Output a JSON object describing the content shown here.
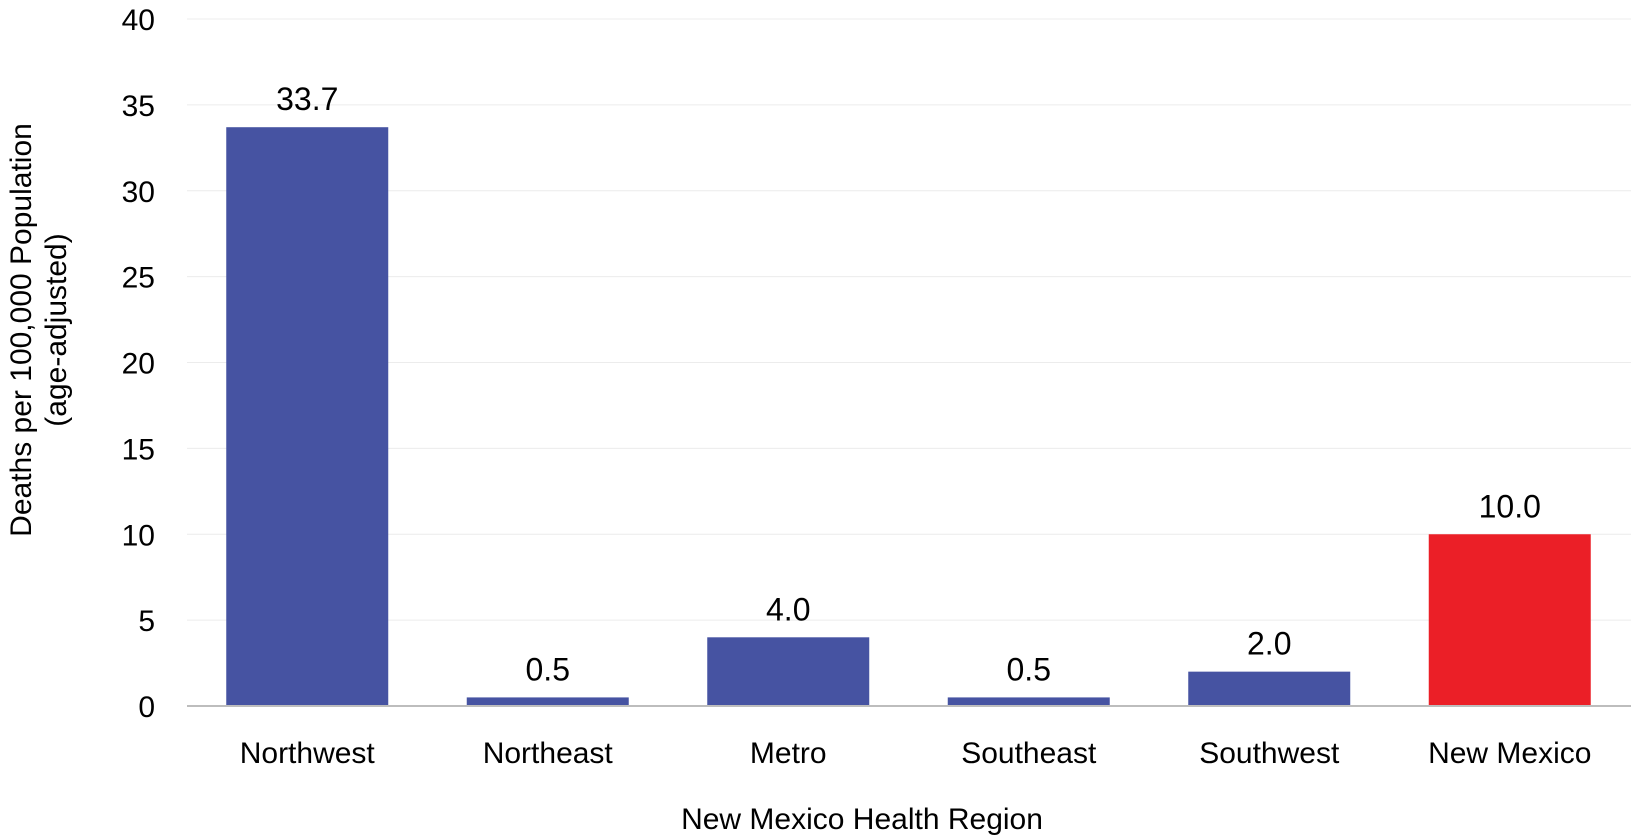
{
  "chart_data": {
    "type": "bar",
    "categories": [
      "Northwest",
      "Northeast",
      "Metro",
      "Southeast",
      "Southwest",
      "New Mexico"
    ],
    "values": [
      33.7,
      0.5,
      4.0,
      0.5,
      2.0,
      10.0
    ],
    "data_labels": [
      "33.7",
      "0.5",
      "4.0",
      "0.5",
      "2.0",
      "10.0"
    ],
    "bar_colors": [
      "#4653a2",
      "#4653a2",
      "#4653a2",
      "#4653a2",
      "#4653a2",
      "#eb1f27"
    ],
    "xlabel": "New Mexico Health Region",
    "ylabel_line1": "Deaths per 100,000 Population",
    "ylabel_line2": "(age-adjusted)",
    "ylim": [
      0,
      40
    ],
    "yticks": [
      0,
      5,
      10,
      15,
      20,
      25,
      30,
      35,
      40
    ],
    "grid": true,
    "legend": "none"
  }
}
